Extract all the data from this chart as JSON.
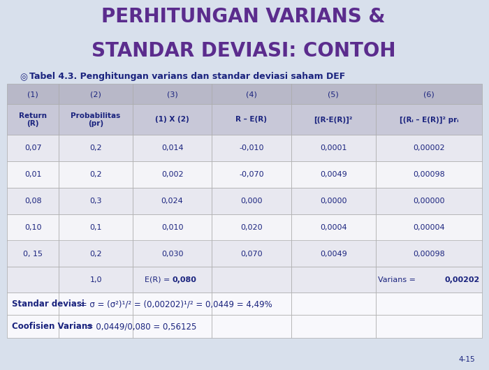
{
  "title_line1": "PERHITUNGAN VARIANS &",
  "title_line2": "STANDAR DEVIASI: CONTOH",
  "subtitle": "Tabel 4.3. Penghitungan varians dan standar deviasi saham DEF",
  "col_headers_row1": [
    "(1)",
    "(2)",
    "(3)",
    "(4)",
    "(5)",
    "(6)"
  ],
  "col_headers_row2_left": [
    "Return\n(R)",
    "Probabilitas\n(pr)",
    "(1) X (2)",
    "R – E(R)",
    "[(R·E(R)]²",
    "[(Rᵢ – E(R)]² prᵢ"
  ],
  "data_rows": [
    [
      "0,07",
      "0,2",
      "0,014",
      "-0,010",
      "0,0001",
      "0,00002"
    ],
    [
      "0,01",
      "0,2",
      "0,002",
      "-0,070",
      "0,0049",
      "0,00098"
    ],
    [
      "0,08",
      "0,3",
      "0,024",
      "0,000",
      "0,0000",
      "0,00000"
    ],
    [
      "0,10",
      "0,1",
      "0,010",
      "0,020",
      "0,0004",
      "0,00004"
    ],
    [
      "0, 15",
      "0,2",
      "0,030",
      "0,070",
      "0,0049",
      "0,00098"
    ]
  ],
  "summary_1_0": "1,0",
  "summary_er_prefix": "E(R) = ",
  "summary_er_value": "0,080",
  "summary_varians_prefix": "Varians = ",
  "summary_varians_value": "0,00202",
  "footer1_bold": "Standar deviasi",
  "footer1_normal": " = σ = (σ²)¹/² = (0,00202)¹/² = 0,0449 = 4,49%",
  "footer2_bold": "Coofisien Varians",
  "footer2_normal": " = 0,0449/0,080 = 0,56125",
  "page_num": "4-15",
  "title_color": "#5b2c8d",
  "subtitle_color": "#1a237e",
  "header_bg1": "#b8b8c8",
  "header_bg2": "#c8c8d8",
  "row_bg_alt": [
    "#e8e8f0",
    "#f4f4f8"
  ],
  "summary_bg": "#e8e8f0",
  "footer_bg": "#f8f8fc",
  "border_color": "#aaaaaa",
  "text_color": "#1a237e",
  "background_color": "#d8e0ec",
  "title_fontsize": 20,
  "subtitle_fontsize": 9,
  "header1_fontsize": 8,
  "header2_fontsize": 7.5,
  "data_fontsize": 8,
  "footer_fontsize": 8.5
}
